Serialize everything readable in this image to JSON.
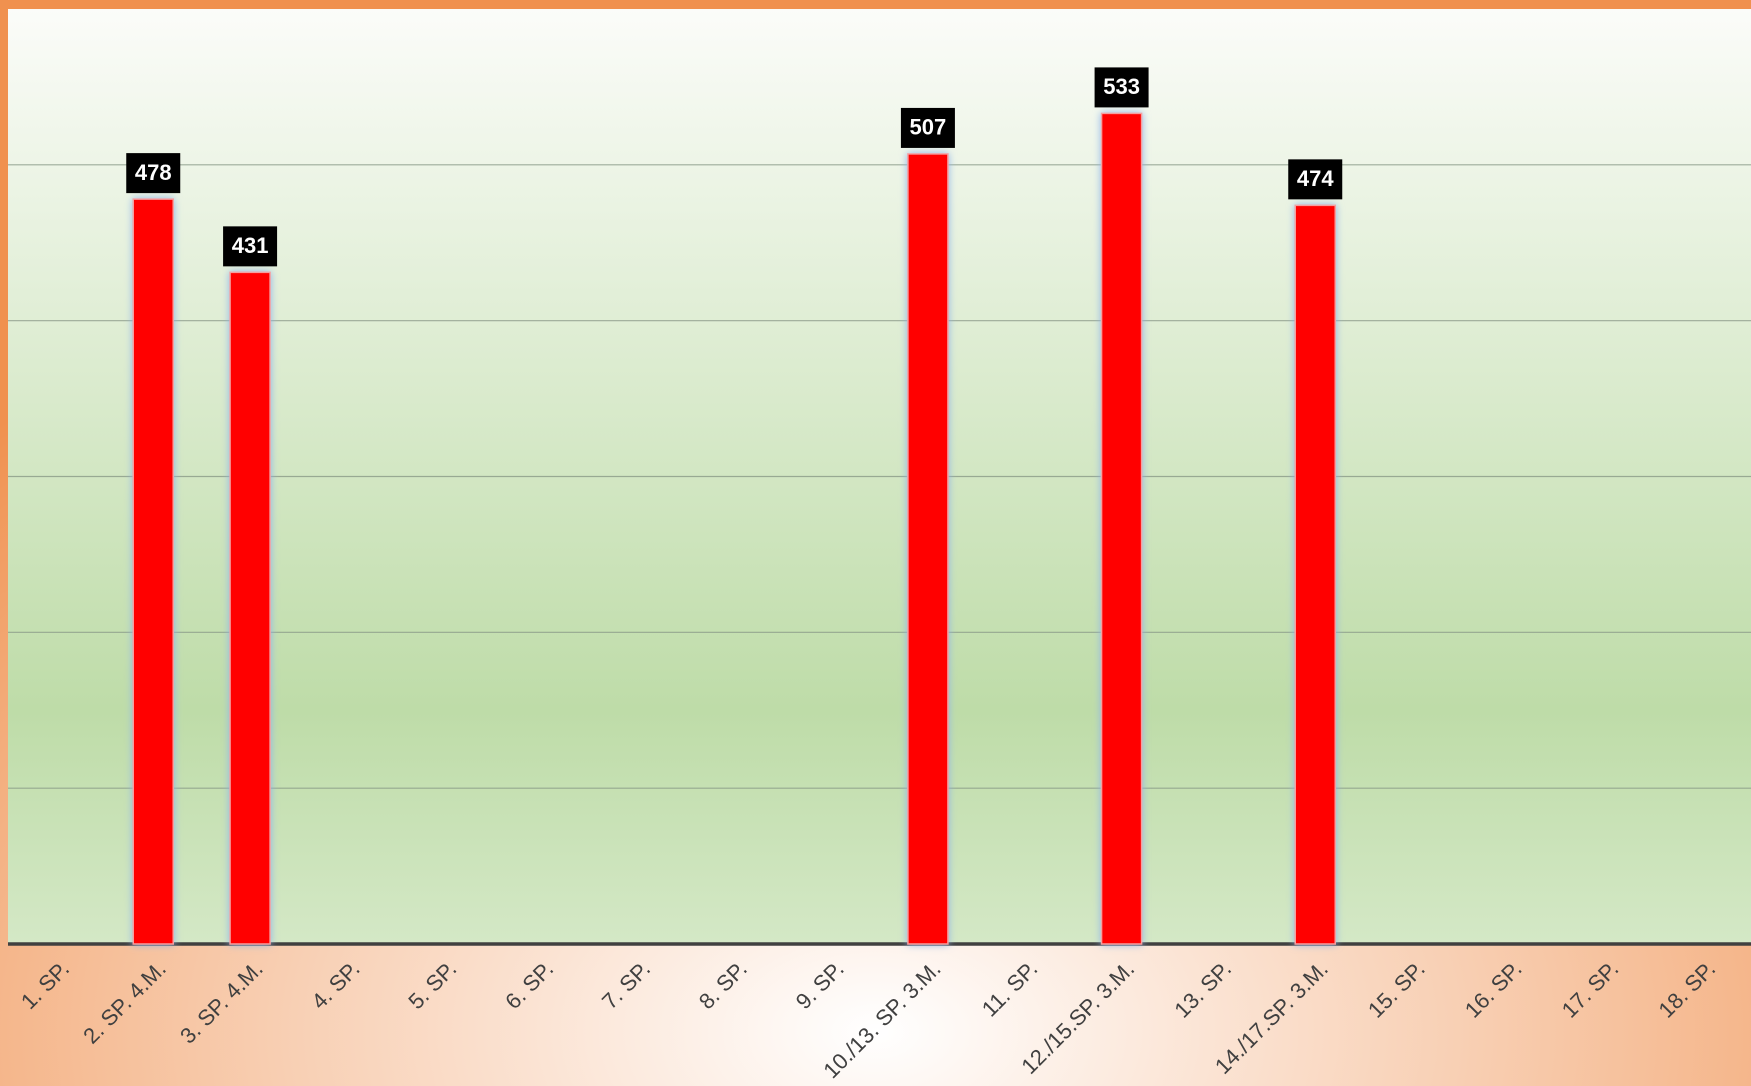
{
  "chart_data": {
    "type": "bar",
    "categories": [
      "1. SP.",
      "2. SP. 4.M.",
      "3. SP. 4.M.",
      "4. SP.",
      "5. SP.",
      "6. SP.",
      "7. SP.",
      "8. SP.",
      "9. SP.",
      "10./13. SP. 3.M.",
      "11. SP.",
      "12./15.SP. 3.M.",
      "13. SP.",
      "14./17.SP. 3.M.",
      "15. SP.",
      "16. SP.",
      "17. SP.",
      "18. SP."
    ],
    "values": [
      null,
      478,
      431,
      null,
      null,
      null,
      null,
      null,
      null,
      507,
      null,
      533,
      null,
      474,
      null,
      null,
      null,
      null
    ],
    "color": "#ff0000",
    "ylim": [
      0,
      600
    ],
    "yticks": [
      0,
      100,
      200,
      300,
      400,
      500
    ],
    "grid": true
  }
}
